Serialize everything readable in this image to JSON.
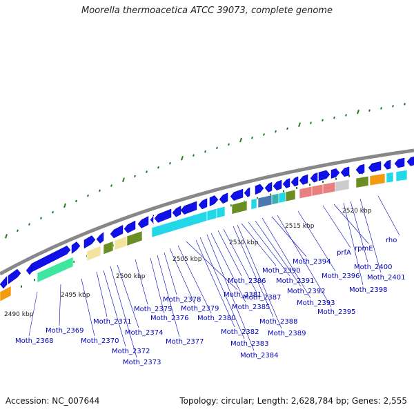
{
  "title": "Moorella thermoacetica ATCC 39073, complete genome",
  "accession": "Accession: NC_007644",
  "topology": "Topology: circular; Length: 2,628,784 bp; Genes: 2,555",
  "scale_labels": [
    "2490 kbp",
    "2495 kbp",
    "2500 kbp",
    "2505 kbp",
    "2510 kbp",
    "2515 kbp",
    "2520 kbp"
  ],
  "gene_labels": [
    "Moth_2368",
    "Moth_2369",
    "Moth_2370",
    "Moth_2371",
    "Moth_2372",
    "Moth_2373",
    "Moth_2374",
    "Moth_2375",
    "Moth_2376",
    "Moth_2377",
    "Moth_2378",
    "Moth_2379",
    "Moth_2380",
    "Moth_2381",
    "Moth_2382",
    "Moth_2383",
    "Moth_2384",
    "Moth_2385",
    "Moth_2386",
    "Moth_2387",
    "Moth_2388",
    "Moth_2389",
    "Moth_2390",
    "Moth_2391",
    "Moth_2392",
    "Moth_2393",
    "Moth_2394",
    "Moth_2395",
    "Moth_2396",
    "prfA",
    "rpmE",
    "Moth_2398",
    "Moth_2400",
    "Moth_2401",
    "rho"
  ],
  "colors": {
    "gene": "#1010e8",
    "backbone": "#888888",
    "tick": "#1e7e1e",
    "label": "#0000bb",
    "cog": [
      "#f39c12",
      "#3ee6a0",
      "#f3e3a0",
      "#6b8e23",
      "#22d8e8",
      "#4a7ab0",
      "#3ab0b0",
      "#e88080",
      "#cccccc"
    ]
  }
}
